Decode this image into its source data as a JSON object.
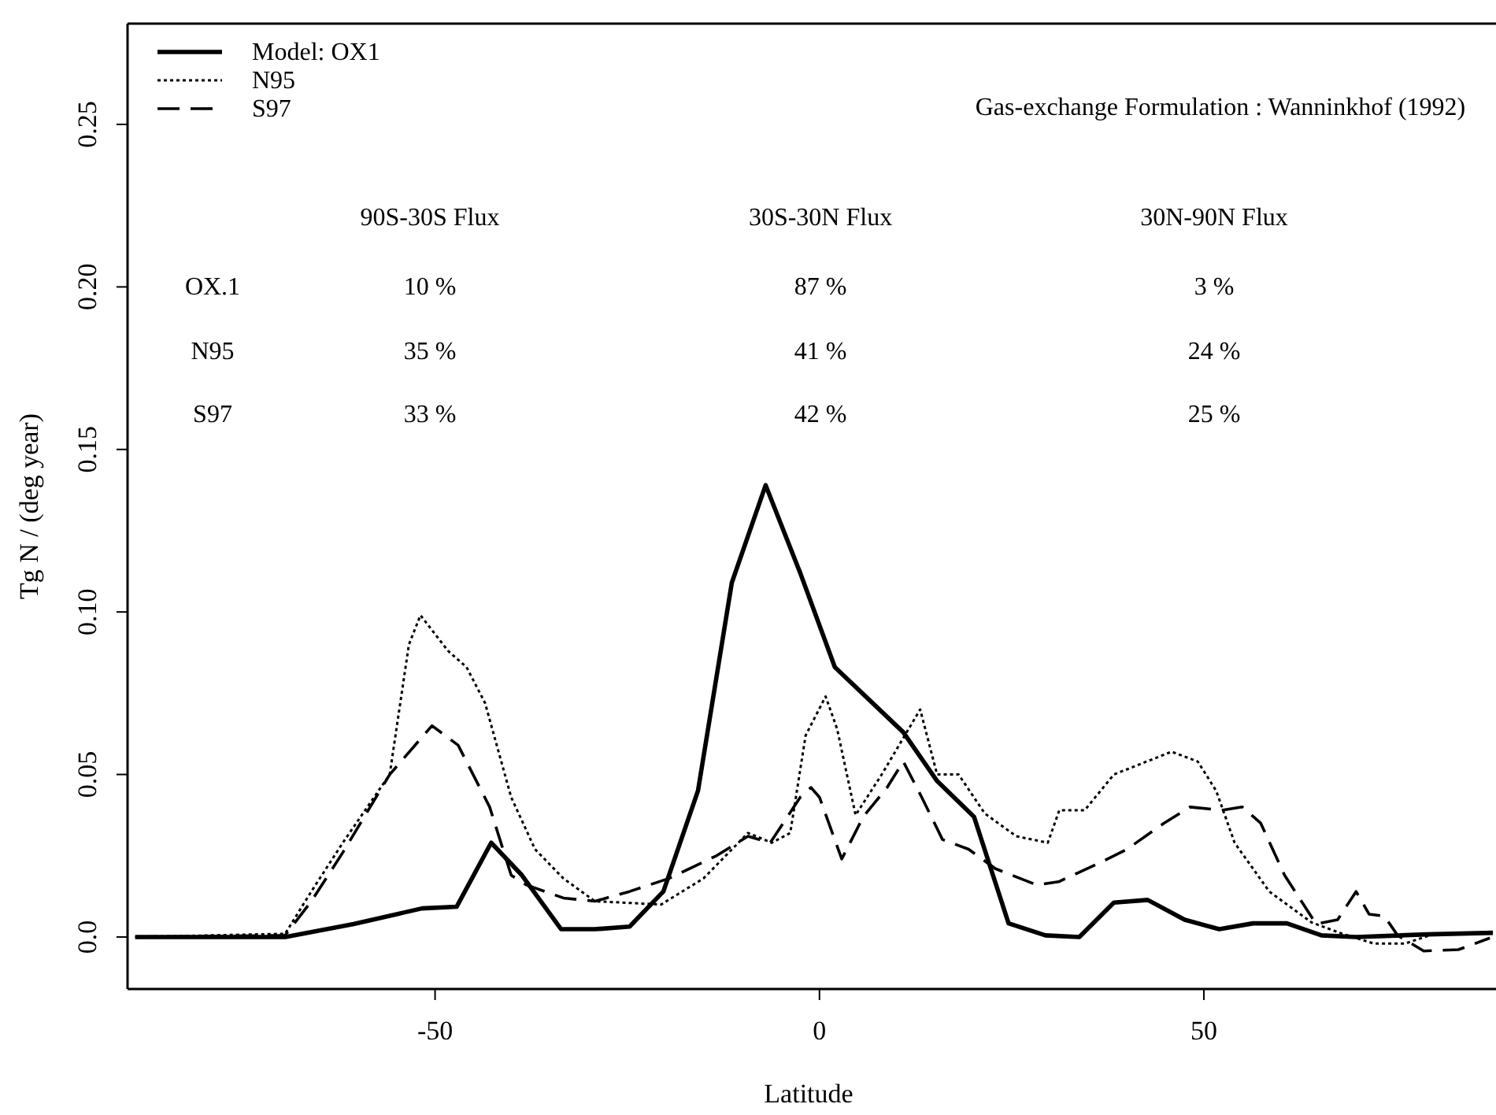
{
  "chart_data": {
    "type": "line",
    "xlabel": "Latitude",
    "ylabel": "Tg N / (deg year)",
    "xlim": [
      -90,
      88
    ],
    "ylim": [
      -0.016,
      0.281
    ],
    "xticks": [
      -50,
      0,
      50
    ],
    "yticks": [
      {
        "value": 0,
        "label": "0.0"
      },
      {
        "value": 0.05,
        "label": "0.05"
      },
      {
        "value": 0.1,
        "label": "0.10"
      },
      {
        "value": 0.15,
        "label": "0.15"
      },
      {
        "value": 0.2,
        "label": "0.20"
      },
      {
        "value": 0.25,
        "label": "0.25"
      }
    ],
    "legend": "top left",
    "grid": false,
    "marker": "none",
    "annotations": [
      "Gas-exchange Formulation : Wanninkhof (1992)",
      "90S-30S Flux",
      "30S-30N Flux",
      "30N-90N Flux",
      "OX.1",
      "10  %",
      "87  %",
      "3  %",
      "N95",
      "35  %",
      "41  %",
      "24  %",
      "S97",
      "33  %",
      "42  %",
      "25  %"
    ],
    "series": [
      {
        "name": "Model: OX1",
        "color": "#000000",
        "line_style": "solid",
        "x": [
          -89,
          -69.5,
          -60.6,
          -51.7,
          -47.2,
          -42.7,
          -38.7,
          -33.6,
          -29.2,
          -24.7,
          -20.3,
          -15.8,
          -11.4,
          -7.0,
          -2.5,
          2.0,
          10.9,
          15.3,
          20.1,
          24.6,
          29.4,
          33.8,
          38.3,
          42.7,
          47.5,
          52,
          56.4,
          60.8,
          65.3,
          69.8,
          79,
          87.6
        ],
        "values": [
          0,
          0,
          0.004,
          0.0088,
          0.0093,
          0.029,
          0.019,
          0.0024,
          0.0024,
          0.0032,
          0.014,
          0.045,
          0.109,
          0.139,
          0.112,
          0.083,
          0.063,
          0.048,
          0.037,
          0.0042,
          0.0005,
          0,
          0.0106,
          0.0114,
          0.0053,
          0.0024,
          0.0042,
          0.0042,
          0.0005,
          0,
          0.0008,
          0.0013
        ]
      },
      {
        "name": "N95",
        "color": "#000000",
        "line_style": "dotted",
        "x": [
          -89,
          -69.5,
          -66.1,
          -62,
          -55.9,
          -53.4,
          -51.9,
          -48.3,
          -45.9,
          -43.5,
          -40.1,
          -37,
          -33.3,
          -29.2,
          -20.6,
          -15.1,
          -9.3,
          -6.2,
          -3.8,
          -1.8,
          0.8,
          2.3,
          4.7,
          8.1,
          13.1,
          15.3,
          18.1,
          21.5,
          25.6,
          29.7,
          31.2,
          34.5,
          38.3,
          45.8,
          49.2,
          51.6,
          54,
          58.5,
          64,
          68,
          72.1,
          76.2,
          79.7,
          87.6
        ],
        "values": [
          0,
          0.001,
          0.014,
          0.029,
          0.05,
          0.09,
          0.099,
          0.088,
          0.083,
          0.072,
          0.043,
          0.027,
          0.018,
          0.011,
          0.01,
          0.018,
          0.032,
          0.029,
          0.032,
          0.062,
          0.074,
          0.064,
          0.0375,
          0.05,
          0.07,
          0.05,
          0.05,
          0.038,
          0.031,
          0.029,
          0.039,
          0.039,
          0.05,
          0.057,
          0.054,
          0.045,
          0.029,
          0.014,
          0.0045,
          0.001,
          -0.002,
          -0.002,
          0.0008,
          0.0013
        ]
      },
      {
        "name": "S97",
        "color": "#000000",
        "line_style": "dashed",
        "x": [
          -89,
          -69.5,
          -66.1,
          -62,
          -55.9,
          -50.4,
          -47,
          -42.9,
          -40.1,
          -38.1,
          -33.3,
          -29.2,
          -24.7,
          -19.6,
          -13.4,
          -9.3,
          -6.4,
          -2.5,
          -1.1,
          0,
          2.9,
          5.7,
          8.8,
          10.9,
          13.3,
          16,
          19.4,
          22.9,
          28.3,
          31.1,
          36.6,
          40,
          44.8,
          48.2,
          52.3,
          55,
          57.4,
          60.5,
          64.6,
          67.4,
          69.8,
          71.5,
          73.5,
          75.2,
          78.6,
          83.1,
          87.2
        ],
        "values": [
          0,
          0.0005,
          0.011,
          0.026,
          0.05,
          0.065,
          0.059,
          0.04,
          0.019,
          0.016,
          0.012,
          0.011,
          0.014,
          0.018,
          0.025,
          0.031,
          0.029,
          0.043,
          0.046,
          0.043,
          0.024,
          0.037,
          0.046,
          0.054,
          0.043,
          0.03,
          0.027,
          0.021,
          0.016,
          0.017,
          0.023,
          0.027,
          0.035,
          0.04,
          0.039,
          0.04,
          0.035,
          0.019,
          0.004,
          0.0053,
          0.014,
          0.007,
          0.0064,
          0.0005,
          -0.0043,
          -0.0039,
          -0.0003
        ]
      }
    ]
  }
}
